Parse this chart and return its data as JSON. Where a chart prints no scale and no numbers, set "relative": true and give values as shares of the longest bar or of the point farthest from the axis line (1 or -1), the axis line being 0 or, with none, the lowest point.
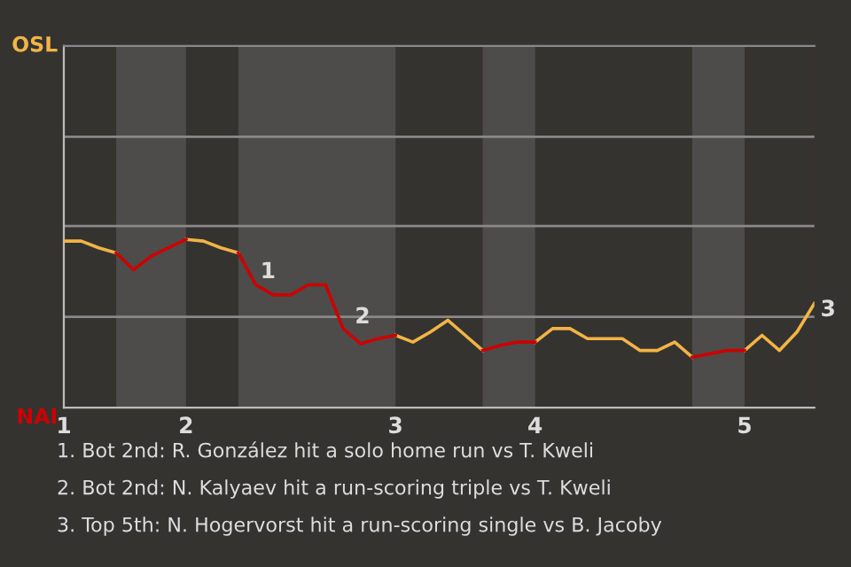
{
  "chart_data": {
    "type": "line",
    "categories": [
      "1",
      null,
      null,
      null,
      null,
      null,
      null,
      "2",
      null,
      null,
      null,
      null,
      null,
      null,
      null,
      null,
      null,
      null,
      null,
      "3",
      null,
      null,
      null,
      null,
      null,
      null,
      null,
      "4",
      null,
      null,
      null,
      null,
      null,
      null,
      null,
      null,
      null,
      null,
      null,
      "5",
      null,
      null,
      null,
      null
    ],
    "relative": true,
    "series": [
      {
        "color": "#f2b445",
        "values": [
          0.99,
          0.99,
          0.95,
          0.92,
          null,
          null,
          null,
          1,
          0.99,
          0.95,
          0.92,
          null,
          null,
          null,
          null,
          null,
          null,
          null,
          null,
          0.43,
          0.39,
          0.45,
          0.52,
          0.43,
          0.34,
          null,
          null,
          0.39,
          0.47,
          0.47,
          0.41,
          0.41,
          0.41,
          0.34,
          0.34,
          0.39,
          0.3,
          null,
          null,
          0.34,
          0.43,
          0.34,
          0.45,
          0.62
        ]
      },
      {
        "color": "#cc0000",
        "values": [
          null,
          null,
          null,
          0.92,
          0.82,
          0.9,
          0.95,
          1,
          null,
          null,
          0.92,
          0.73,
          0.67,
          0.67,
          0.73,
          0.73,
          0.47,
          0.38,
          0.41,
          0.43,
          null,
          null,
          null,
          null,
          0.34,
          0.37,
          0.39,
          0.39,
          null,
          null,
          null,
          null,
          null,
          null,
          null,
          null,
          0.3,
          0.32,
          0.34,
          0.34,
          null,
          null,
          null,
          null
        ]
      }
    ],
    "ref_lines": [
      {
        "axis": "y",
        "value": 0.54
      },
      {
        "axis": "y",
        "value": 1.08
      },
      {
        "axis": "y",
        "value": 1.61
      }
    ],
    "annotations": [
      "OSL",
      "NAI",
      "1",
      "2",
      "3",
      "1. Bot 2nd: R. González hit a solo home run vs T. Kweli",
      "2. Bot 2nd: N. Kalyaev hit a run-scoring triple vs T. Kweli",
      "3. Top 5th: N. Hogervorst hit a run-scoring single vs B. Jacoby"
    ]
  }
}
